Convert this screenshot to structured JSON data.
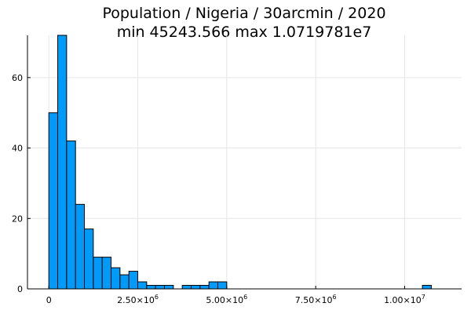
{
  "chart_data": {
    "type": "bar",
    "title": "Population / Nigeria / 30arcmin / 2020",
    "subtitle": "min 45243.566  max 1.0719781e7",
    "xlabel": "",
    "ylabel": "",
    "xlim": [
      -600000,
      11600000
    ],
    "ylim": [
      0,
      72
    ],
    "bin_width": 250000,
    "x_ticks": [
      {
        "value": 0,
        "label": "0"
      },
      {
        "value": 2500000,
        "label": "2.50×10",
        "exp": "6"
      },
      {
        "value": 5000000,
        "label": "5.00×10",
        "exp": "6"
      },
      {
        "value": 7500000,
        "label": "7.50×10",
        "exp": "6"
      },
      {
        "value": 10000000,
        "label": "1.00×10",
        "exp": "7"
      }
    ],
    "y_ticks": [
      {
        "value": 0,
        "label": "0"
      },
      {
        "value": 20,
        "label": "20"
      },
      {
        "value": 40,
        "label": "40"
      },
      {
        "value": 60,
        "label": "60"
      }
    ],
    "bins": [
      {
        "start": 0,
        "end": 250000,
        "count": 50
      },
      {
        "start": 250000,
        "end": 500000,
        "count": 72
      },
      {
        "start": 500000,
        "end": 750000,
        "count": 42
      },
      {
        "start": 750000,
        "end": 1000000,
        "count": 24
      },
      {
        "start": 1000000,
        "end": 1250000,
        "count": 17
      },
      {
        "start": 1250000,
        "end": 1500000,
        "count": 9
      },
      {
        "start": 1500000,
        "end": 1750000,
        "count": 9
      },
      {
        "start": 1750000,
        "end": 2000000,
        "count": 6
      },
      {
        "start": 2000000,
        "end": 2250000,
        "count": 4
      },
      {
        "start": 2250000,
        "end": 2500000,
        "count": 5
      },
      {
        "start": 2500000,
        "end": 2750000,
        "count": 2
      },
      {
        "start": 2750000,
        "end": 3000000,
        "count": 1
      },
      {
        "start": 3000000,
        "end": 3250000,
        "count": 1
      },
      {
        "start": 3250000,
        "end": 3500000,
        "count": 1
      },
      {
        "start": 3750000,
        "end": 4000000,
        "count": 1
      },
      {
        "start": 4000000,
        "end": 4250000,
        "count": 1
      },
      {
        "start": 4250000,
        "end": 4500000,
        "count": 1
      },
      {
        "start": 4500000,
        "end": 4750000,
        "count": 2
      },
      {
        "start": 4750000,
        "end": 5000000,
        "count": 2
      },
      {
        "start": 10500000,
        "end": 10750000,
        "count": 1
      }
    ],
    "grid": true,
    "legend": "none",
    "colors": {
      "bar_fill": "#009af9",
      "bar_stroke": "#000000",
      "grid": "#e6e6e6"
    }
  }
}
